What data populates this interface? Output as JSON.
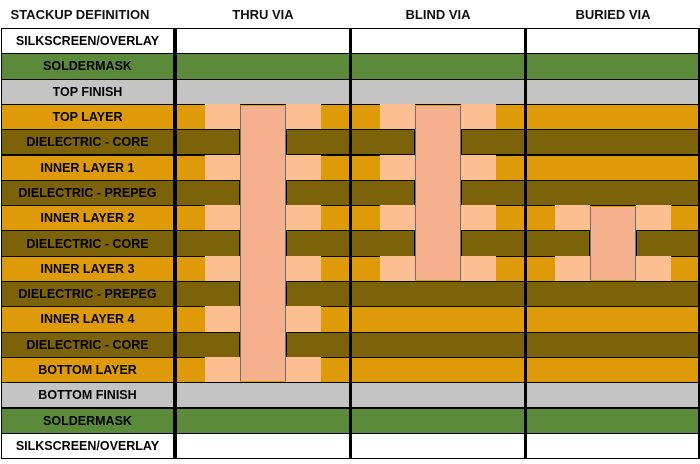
{
  "headers": [
    "STACKUP DEFINITION",
    "THRU VIA",
    "BLIND VIA",
    "BURIED VIA"
  ],
  "layers": [
    {
      "label": "SILKSCREEN/OVERLAY",
      "kind": "silk"
    },
    {
      "label": "SOLDERMASK",
      "kind": "mask"
    },
    {
      "label": "TOP FINISH",
      "kind": "finish"
    },
    {
      "label": "TOP LAYER",
      "kind": "copper"
    },
    {
      "label": "DIELECTRIC - CORE",
      "kind": "dielectric"
    },
    {
      "label": "INNER LAYER 1",
      "kind": "copper"
    },
    {
      "label": "DIELECTRIC - PREPEG",
      "kind": "dielectric"
    },
    {
      "label": "INNER LAYER 2",
      "kind": "copper"
    },
    {
      "label": "DIELECTRIC - CORE",
      "kind": "dielectric"
    },
    {
      "label": "INNER LAYER 3",
      "kind": "copper"
    },
    {
      "label": "DIELECTRIC - PREPEG",
      "kind": "dielectric"
    },
    {
      "label": "INNER LAYER 4",
      "kind": "copper"
    },
    {
      "label": "DIELECTRIC - CORE",
      "kind": "dielectric"
    },
    {
      "label": "BOTTOM LAYER",
      "kind": "copper"
    },
    {
      "label": "BOTTOM FINISH",
      "kind": "finish"
    },
    {
      "label": "SOLDERMASK",
      "kind": "mask"
    },
    {
      "label": "SILKSCREEN/OVERLAY",
      "kind": "silk"
    }
  ],
  "vias": [
    {
      "name": "thru-via",
      "from_layer": 3,
      "to_layer": 13
    },
    {
      "name": "blind-via",
      "from_layer": 3,
      "to_layer": 9
    },
    {
      "name": "buried-via",
      "from_layer": 7,
      "to_layer": 9
    }
  ],
  "colors": {
    "silk": "#ffffff",
    "mask": "#5a8a3a",
    "finish": "#c4c4c4",
    "copper": "#de9a08",
    "dielectric": "#7c6208",
    "plating": "#fbbf92",
    "barrel": "#f5b08d"
  }
}
